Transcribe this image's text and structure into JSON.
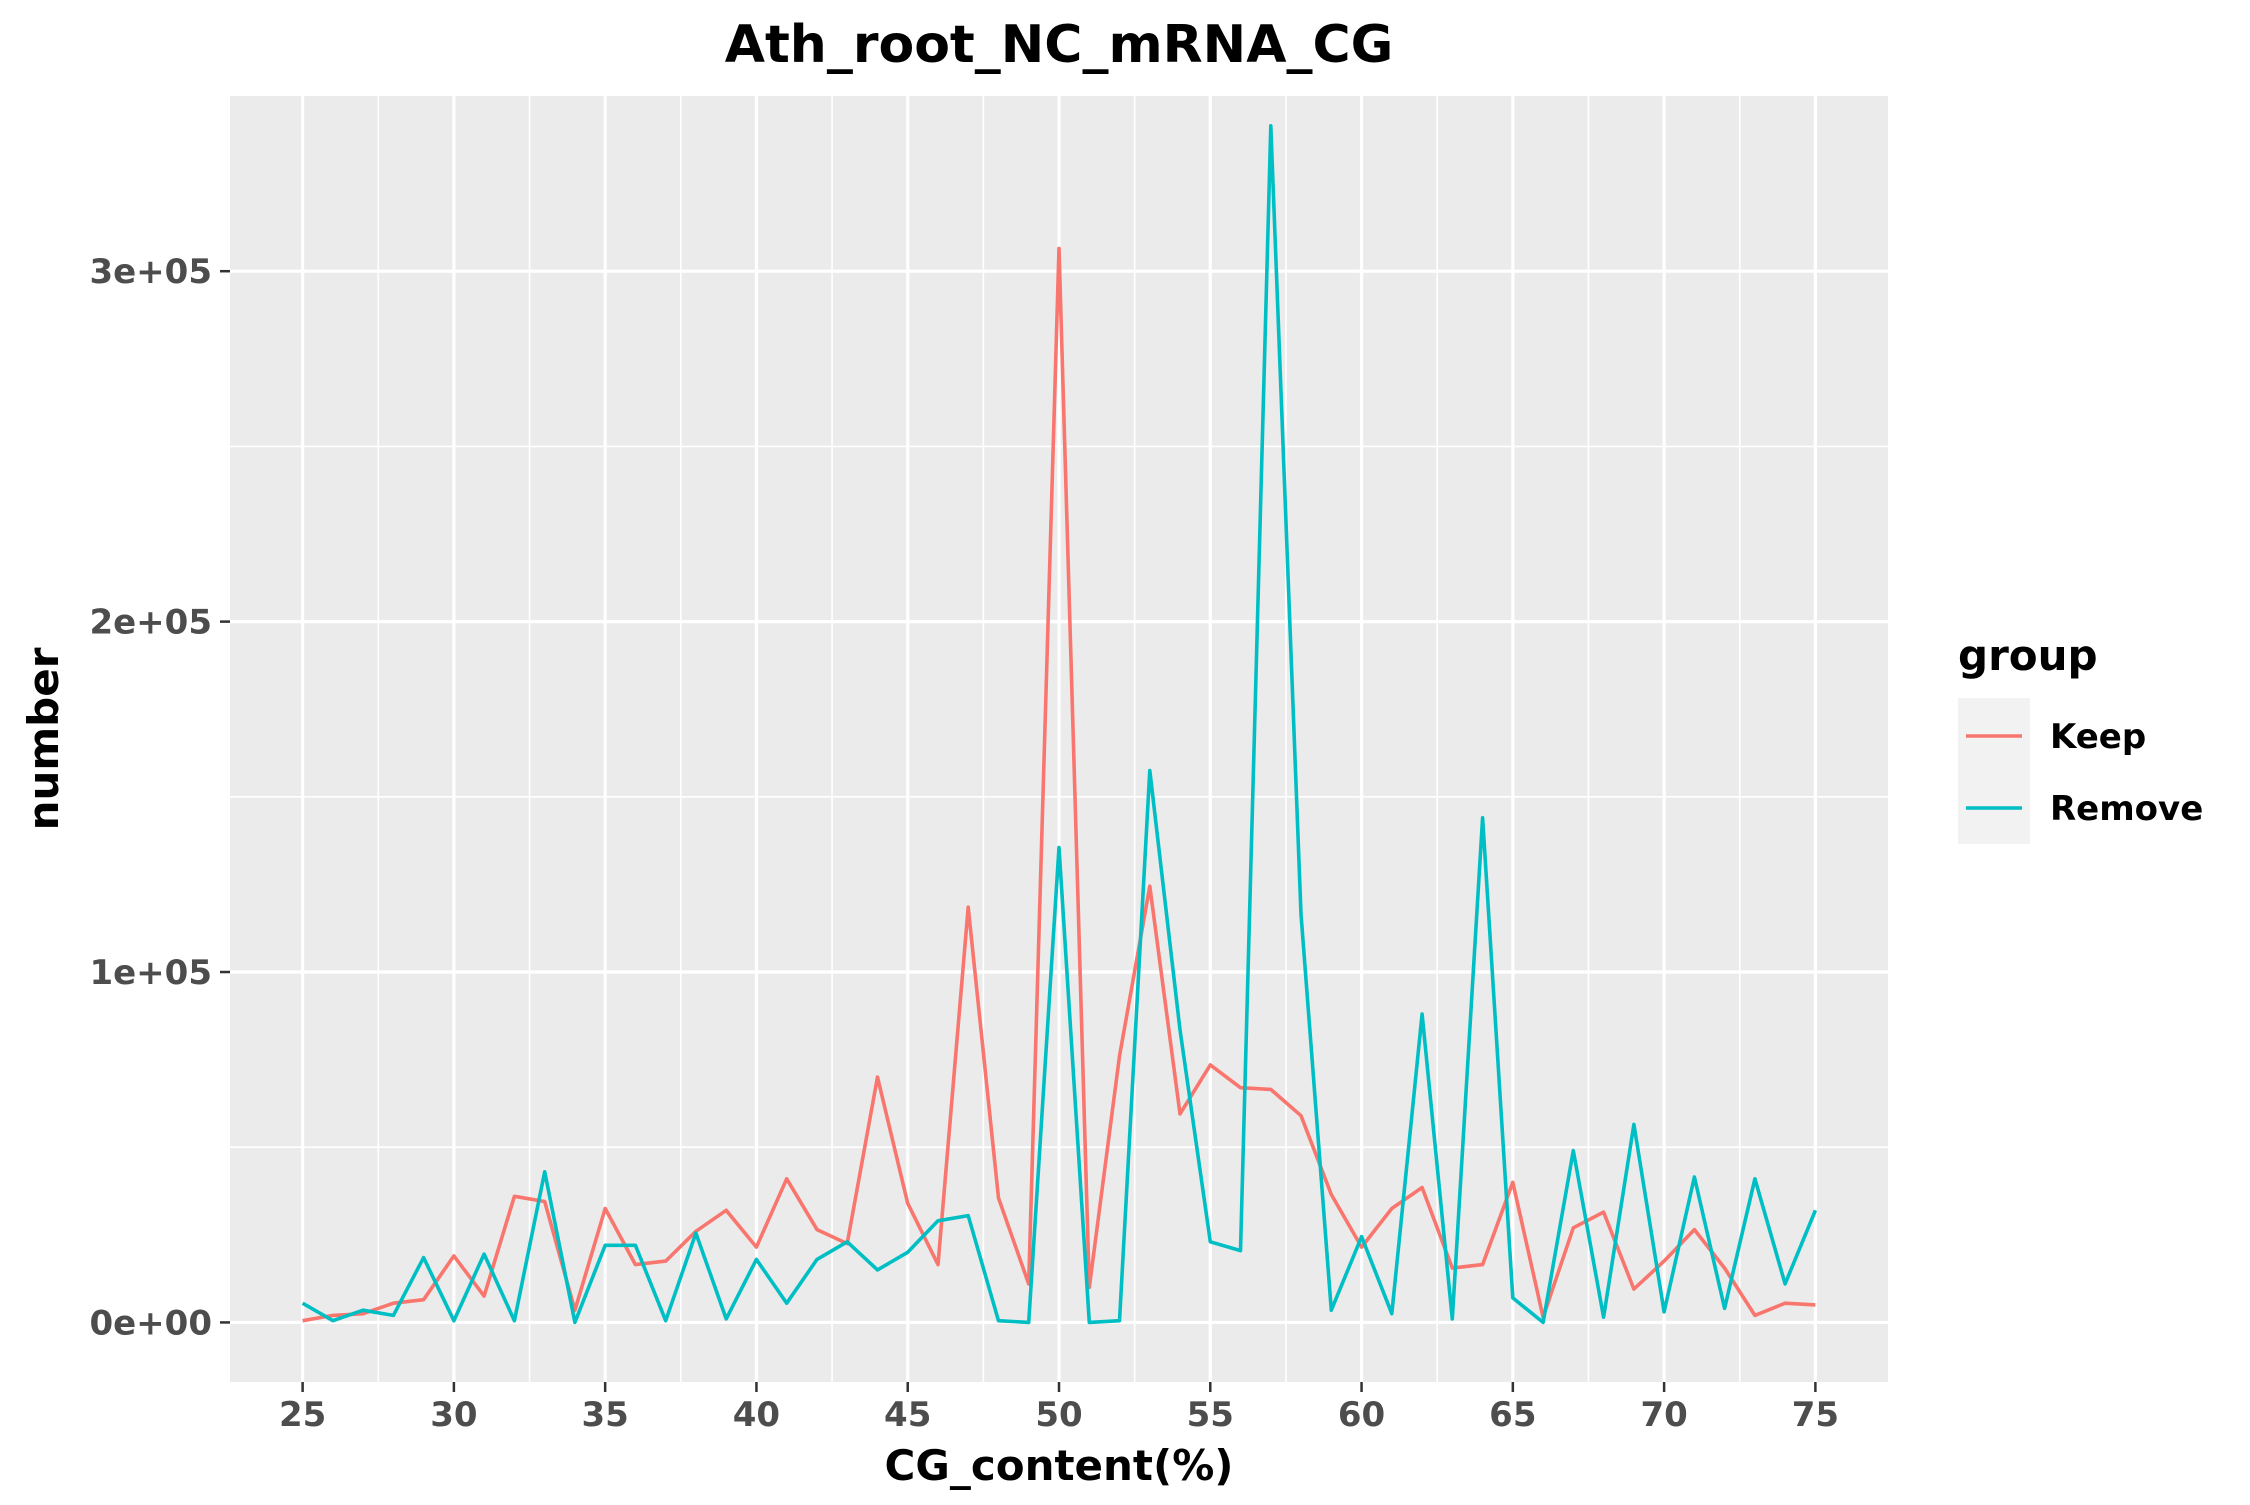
{
  "chart_data": {
    "type": "line",
    "title": "Ath_root_NC_mRNA_CG",
    "xlabel": "CG_content(%)",
    "ylabel": "number",
    "xlim": [
      22.6,
      77.4
    ],
    "ylim": [
      -17000,
      350000
    ],
    "x_ticks": [
      25,
      30,
      35,
      40,
      45,
      50,
      55,
      60,
      65,
      70,
      75
    ],
    "y_ticks": [
      0,
      100000,
      200000,
      300000
    ],
    "y_tick_labels": [
      "0e+00",
      "1e+05",
      "2e+05",
      "3e+05"
    ],
    "grid": true,
    "legend": {
      "title": "group",
      "position": "right"
    },
    "x": [
      25,
      26,
      27,
      28,
      29,
      30,
      31,
      32,
      33,
      34,
      35,
      36,
      37,
      38,
      39,
      40,
      41,
      42,
      43,
      44,
      45,
      46,
      47,
      48,
      49,
      50,
      51,
      52,
      53,
      54,
      55,
      56,
      57,
      58,
      59,
      60,
      61,
      62,
      63,
      64,
      65,
      66,
      67,
      68,
      69,
      70,
      71,
      72,
      73,
      74,
      75
    ],
    "series": [
      {
        "name": "Keep",
        "color": "#F8766D",
        "values": [
          500,
          2000,
          2500,
          5500,
          6500,
          19000,
          7500,
          36000,
          34500,
          3500,
          32500,
          16500,
          17500,
          26000,
          32000,
          21500,
          41000,
          26500,
          22500,
          70000,
          34000,
          16500,
          118500,
          35500,
          11000,
          306500,
          10000,
          76000,
          124500,
          59500,
          73500,
          67000,
          66500,
          59000,
          36500,
          21500,
          32500,
          38500,
          15500,
          16500,
          40000,
          1500,
          27000,
          31500,
          9500,
          17500,
          26500,
          15500,
          2000,
          5500,
          5000
        ]
      },
      {
        "name": "Remove",
        "color": "#00BFC4",
        "values": [
          5500,
          500,
          3500,
          2000,
          18500,
          500,
          19500,
          500,
          43000,
          0,
          22000,
          22000,
          500,
          25500,
          1000,
          18000,
          5500,
          18000,
          23000,
          15000,
          20000,
          29000,
          30500,
          500,
          0,
          135500,
          0,
          500,
          157500,
          83500,
          23000,
          20500,
          341500,
          116500,
          3500,
          24500,
          2500,
          88000,
          1000,
          144000,
          7000,
          0,
          49000,
          1500,
          56500,
          3000,
          41500,
          4000,
          41000,
          11000,
          32000
        ]
      }
    ]
  }
}
